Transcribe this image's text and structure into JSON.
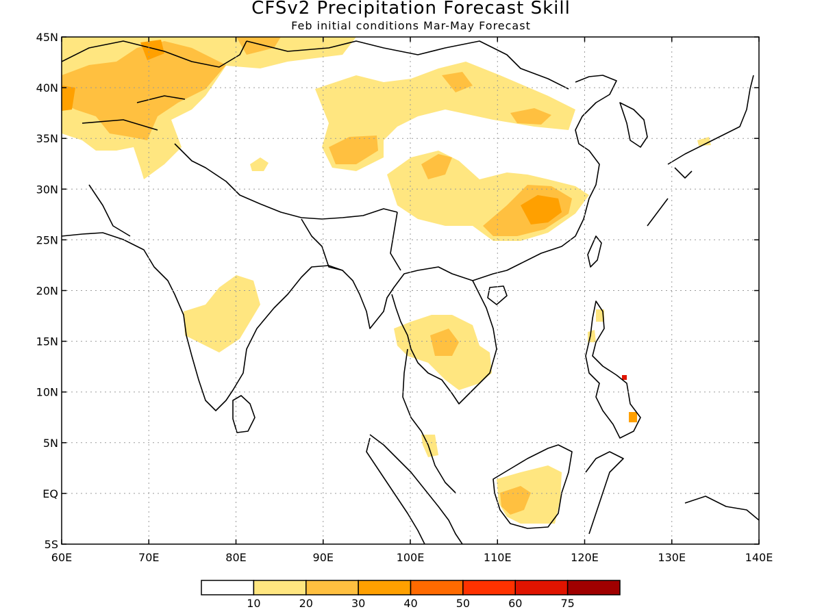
{
  "title": "CFSv2 Precipitation Forecast Skill",
  "subtitle": "Feb initial conditions  Mar-May Forecast",
  "map": {
    "lon_range": [
      60,
      140
    ],
    "lat_range": [
      -5,
      45
    ],
    "lon_ticks": [
      "60E",
      "70E",
      "80E",
      "90E",
      "100E",
      "110E",
      "120E",
      "130E",
      "140E"
    ],
    "lat_ticks": [
      "5S",
      "EQ",
      "5N",
      "10N",
      "15N",
      "20N",
      "25N",
      "30N",
      "35N",
      "40N",
      "45N"
    ],
    "gridlines": "dotted",
    "coastlines": true
  },
  "colorbar": {
    "labels": [
      "10",
      "20",
      "30",
      "40",
      "50",
      "60",
      "75"
    ],
    "colors": [
      "#ffffff",
      "#ffe680",
      "#ffc040",
      "#ffa000",
      "#ff6a00",
      "#ff3200",
      "#e01400",
      "#a00000"
    ]
  }
}
